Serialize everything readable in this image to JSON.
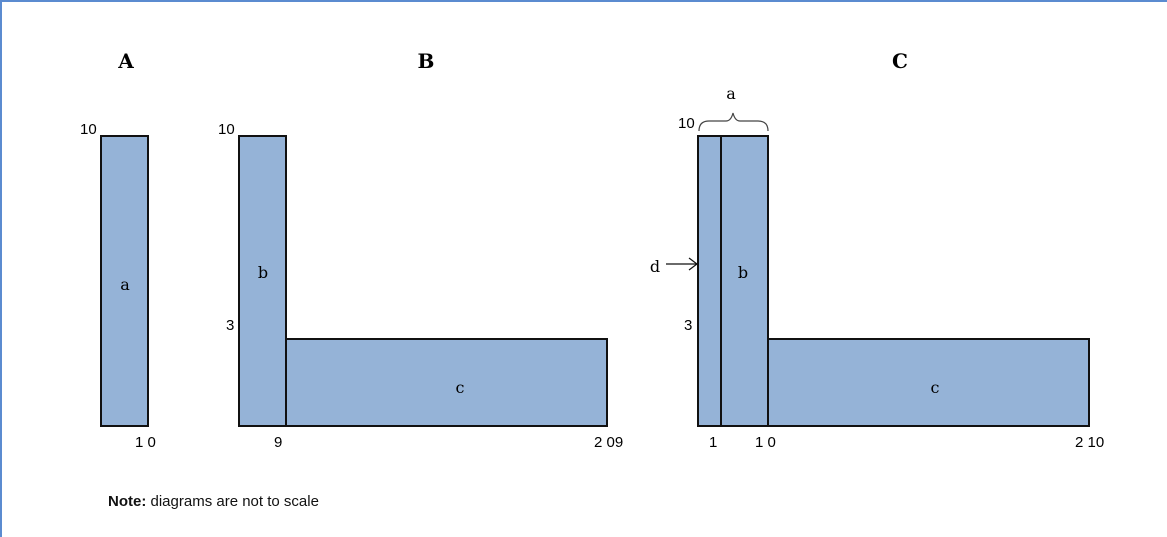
{
  "colors": {
    "fill": "#95b3d7",
    "stroke": "#111111",
    "frame": "#5b8bd0"
  },
  "panels": {
    "A": {
      "title": "A",
      "top_label": "10",
      "bottom_label": "1 0",
      "region_a": "a"
    },
    "B": {
      "title": "B",
      "top_label": "10",
      "mid_label": "3",
      "x_label_1": "9",
      "x_label_2": "2 09",
      "region_b": "b",
      "region_c": "c"
    },
    "C": {
      "title": "C",
      "top_label": "10",
      "mid_label": "3",
      "x_label_1": "1",
      "x_label_2": "1 0",
      "x_label_3": "2 10",
      "brace_label": "a",
      "arrow_label": "d",
      "region_b": "b",
      "region_c": "c"
    }
  },
  "note": {
    "bold": "Note:",
    "text": " diagrams are not to scale"
  }
}
